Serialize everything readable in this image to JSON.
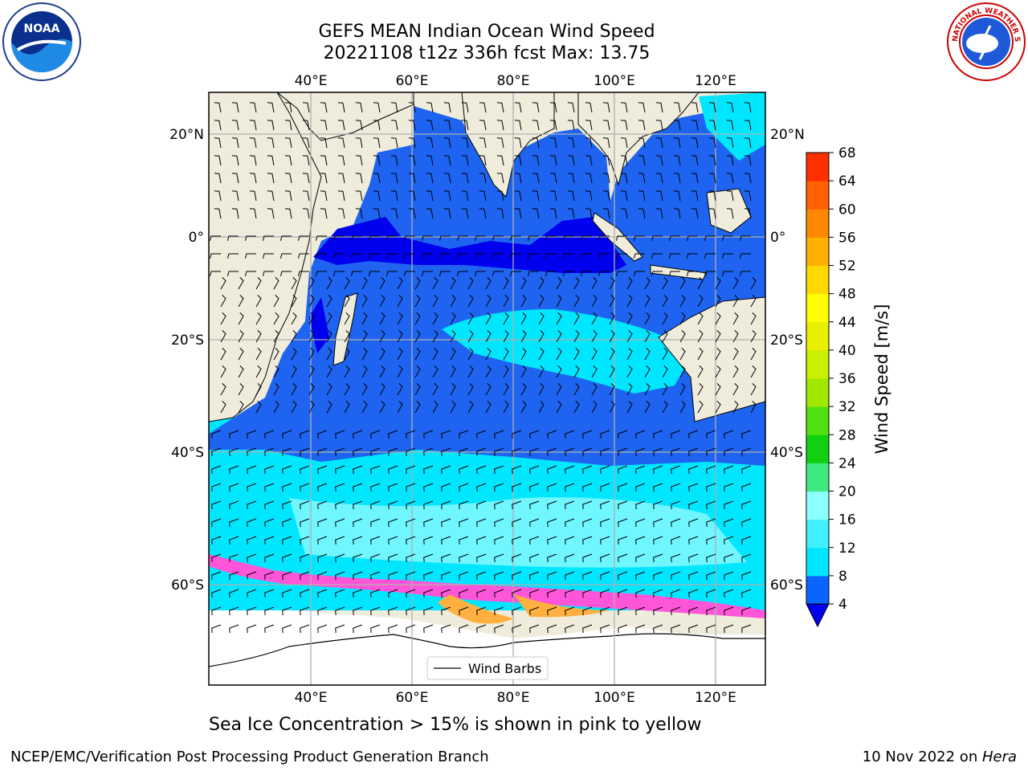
{
  "title": {
    "line1": "GEFS MEAN Indian Ocean Wind Speed",
    "line2": "20221108 t12z 336h fcst   Max: 13.75"
  },
  "axes": {
    "lon_ticks": [
      "40°E",
      "60°E",
      "80°E",
      "100°E",
      "120°E"
    ],
    "lat_ticks": [
      "20°N",
      "0°",
      "20°S",
      "40°S",
      "60°S"
    ]
  },
  "legend": {
    "label": "Wind Barbs"
  },
  "colorbar": {
    "label": "Wind Speed [m/s]",
    "ticks": [
      "4",
      "8",
      "12",
      "16",
      "20",
      "24",
      "28",
      "32",
      "36",
      "40",
      "44",
      "48",
      "52",
      "56",
      "60",
      "64",
      "68"
    ],
    "colors": [
      "#0a64ff",
      "#00e6ff",
      "#40f0ff",
      "#8cffff",
      "#40e880",
      "#10d010",
      "#50e010",
      "#a0e800",
      "#c8f000",
      "#e8f000",
      "#ffff00",
      "#ffd800",
      "#ffb000",
      "#ff8800",
      "#ff6000",
      "#ff3000",
      "#ff0000"
    ],
    "under_color": "#0000ee"
  },
  "caption": "Sea Ice Concentration > 15% is shown in pink to yellow",
  "footer": {
    "left": "NCEP/EMC/Verification Post Processing Product Generation Branch",
    "right_date": "10 Nov 2022 on ",
    "right_machine": "Hera"
  },
  "colors": {
    "land": "#efecdc",
    "ocean_main": "#1e64f0",
    "ocean_dark": "#0000ee",
    "ocean_light": "#00e6ff",
    "ocean_pale": "#6ff6ff",
    "ice_pink": "#ff55d8",
    "ice_orange": "#ffb040",
    "antarctic": "#ffffff"
  },
  "logos": {
    "noaa": "NOAA",
    "nws": "NATIONAL WEATHER SERVICE"
  }
}
